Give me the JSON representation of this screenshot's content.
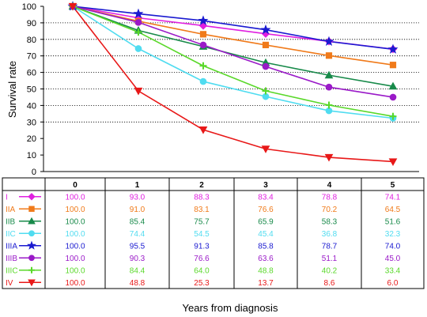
{
  "chart_data": {
    "type": "line",
    "ylabel": "Survival rate",
    "xlabel": "Years from diagnosis",
    "x": [
      0,
      1,
      2,
      3,
      4,
      5
    ],
    "ylim": [
      0,
      100
    ],
    "yticks": [
      0,
      10,
      20,
      30,
      40,
      50,
      60,
      70,
      80,
      90,
      100
    ],
    "grid": "horizontal dotted at 30-90",
    "series": [
      {
        "name": "I",
        "color": "#e020e0",
        "marker": "diamond",
        "values": [
          "100.0",
          "93.0",
          "88.3",
          "83.4",
          "78.8",
          "74.1"
        ]
      },
      {
        "name": "IIA",
        "color": "#f07a1a",
        "marker": "square",
        "values": [
          "100.0",
          "91.0",
          "83.1",
          "76.6",
          "70.2",
          "64.5"
        ]
      },
      {
        "name": "IIB",
        "color": "#188a4a",
        "marker": "triangle-up",
        "values": [
          "100.0",
          "85.4",
          "75.7",
          "65.9",
          "58.3",
          "51.6"
        ]
      },
      {
        "name": "IIC",
        "color": "#50dcf0",
        "marker": "circle",
        "values": [
          "100.0",
          "74.4",
          "54.5",
          "45.4",
          "36.8",
          "32.3"
        ]
      },
      {
        "name": "IIIA",
        "color": "#1a1ad0",
        "marker": "star",
        "values": [
          "100.0",
          "95.5",
          "91.3",
          "85.8",
          "78.7",
          "74.0"
        ]
      },
      {
        "name": "IIIB",
        "color": "#9a1ac8",
        "marker": "circle",
        "values": [
          "100.0",
          "90.3",
          "76.6",
          "63.6",
          "51.1",
          "45.0"
        ]
      },
      {
        "name": "IIIC",
        "color": "#5ad82a",
        "marker": "plus",
        "values": [
          "100.0",
          "84.4",
          "64.0",
          "48.8",
          "40.2",
          "33.4"
        ]
      },
      {
        "name": "IV",
        "color": "#e81818",
        "marker": "triangle-down",
        "values": [
          "100.0",
          "48.8",
          "25.3",
          "13.7",
          "8.6",
          "6.0"
        ]
      }
    ]
  }
}
